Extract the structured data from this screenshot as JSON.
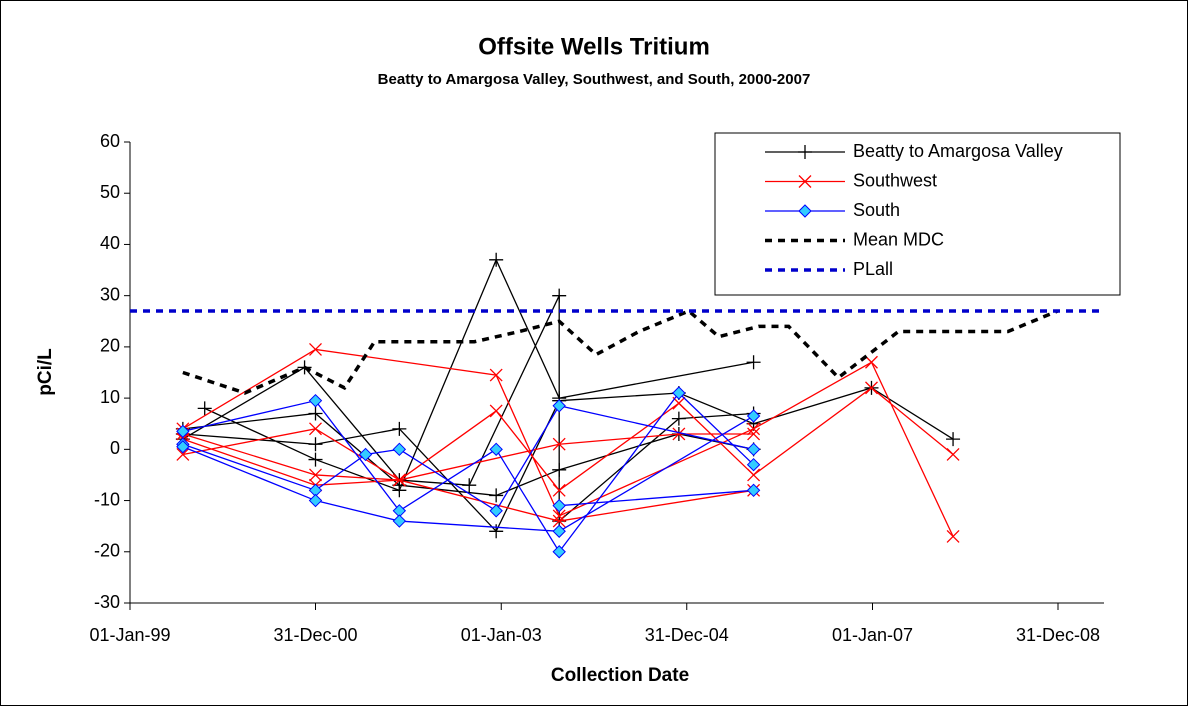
{
  "chart_data": {
    "type": "line",
    "title": "Offsite Wells Tritium",
    "subtitle": "Beatty to Amargosa Valley, Southwest, and South, 2000-2007",
    "x_label": "Collection Date",
    "y_label": "pCi/L",
    "xlim": [
      "1999-01-01",
      "2009-06-30"
    ],
    "xticks": [
      {
        "value": "1999-01-01",
        "label": "01-Jan-99"
      },
      {
        "value": "2000-12-31",
        "label": "31-Dec-00"
      },
      {
        "value": "2003-01-01",
        "label": "01-Jan-03"
      },
      {
        "value": "2004-12-31",
        "label": "31-Dec-04"
      },
      {
        "value": "2007-01-01",
        "label": "01-Jan-07"
      },
      {
        "value": "2008-12-31",
        "label": "31-Dec-08"
      }
    ],
    "ylim": [
      -30,
      60
    ],
    "yticks": [
      -30,
      -20,
      -10,
      0,
      10,
      20,
      30,
      40,
      50,
      60
    ],
    "legend": "top-right",
    "series": [
      {
        "name": "Beatty to Amargosa Valley",
        "color": "#000000",
        "marker": "plus",
        "dash": false,
        "x": [
          "1999-07-28",
          "2000-12-31",
          "2001-11-26",
          "2002-12-12",
          "2003-08-17",
          "2004-11-30",
          "2005-09-20",
          "2006-12-28",
          "2007-11-14",
          null,
          "1999-10-22",
          "2000-12-31",
          "2001-11-26",
          "2002-12-12",
          "2003-08-17",
          "2005-09-20",
          null,
          "1999-07-28",
          "2000-11-18",
          "2001-11-26",
          "2002-08-28",
          "2003-08-17",
          "2003-08-17",
          "2004-11-30",
          "2005-09-20",
          null,
          "1999-07-28",
          "2000-12-31",
          "2001-11-26",
          "2002-12-12",
          "2003-08-17",
          "2004-11-30",
          "2005-09-20"
        ],
        "values": [
          3,
          1,
          4,
          -16,
          9.5,
          11,
          5,
          12,
          2,
          null,
          8,
          -2,
          -8,
          37,
          10,
          17,
          null,
          2,
          16,
          -6,
          -7,
          30,
          -14,
          6,
          7,
          null,
          4,
          7,
          -7,
          -9,
          -4,
          3,
          0
        ]
      },
      {
        "name": "Southwest",
        "color": "#ff0000",
        "marker": "x",
        "dash": false,
        "x": [
          "1999-07-28",
          "2000-12-31",
          "2002-12-12",
          "2003-08-17",
          "2005-09-20",
          "2006-12-28",
          "2007-11-14",
          null,
          "1999-07-28",
          "2000-12-31",
          "2001-11-26",
          "2002-12-12",
          "2003-08-17",
          "2004-11-30",
          "2005-09-20",
          "2006-12-28",
          "2007-11-14",
          null,
          "1999-07-28",
          "2000-12-31",
          "2001-11-26",
          "2003-08-17",
          "2004-11-30",
          "2005-09-20",
          null,
          "1999-07-28",
          "2000-12-31",
          "2001-11-26",
          "2003-08-17",
          "2005-09-20"
        ],
        "values": [
          4,
          19.5,
          14.5,
          -13,
          4,
          17,
          -17,
          null,
          -1,
          4,
          -6,
          7.5,
          -8,
          9,
          -5,
          12,
          -1,
          null,
          3,
          -5,
          -6,
          1,
          3,
          3,
          null,
          2,
          -7,
          -6,
          -14,
          -8
        ]
      },
      {
        "name": "South",
        "color": "#0000ff",
        "marker": "diamond",
        "dash": false,
        "x": [
          "1999-07-28",
          "2000-12-31",
          "2001-11-26",
          "2002-12-12",
          "2003-08-17",
          "2004-11-30",
          "2005-09-20",
          null,
          "1999-07-28",
          "2000-12-31",
          "2001-07-16",
          "2001-11-26",
          "2002-12-12",
          "2003-08-17",
          "2005-09-20",
          null,
          "1999-07-28",
          "2000-12-31",
          "2001-11-26",
          "2003-08-17",
          "2005-09-20",
          null,
          "2003-08-17",
          "2005-09-20"
        ],
        "values": [
          3.5,
          9.5,
          -12,
          0,
          -20,
          11,
          -3,
          null,
          1,
          -8,
          -1,
          0,
          -12,
          8.5,
          0,
          null,
          0.5,
          -10,
          -14,
          -16,
          6.5,
          null,
          -11,
          -8
        ]
      },
      {
        "name": "Mean MDC",
        "color": "#000000",
        "marker": "none",
        "dash": true,
        "x": [
          "1999-07-28",
          "2000-03-28",
          "2000-11-18",
          "2001-04-24",
          "2001-08-20",
          "2002-03-24",
          "2002-09-17",
          "2003-03-13",
          "2003-08-17",
          "2004-01-09",
          "2004-06-26",
          "2005-01-08",
          "2005-05-06",
          "2005-10-10",
          "2006-02-05",
          "2006-08-20",
          "2007-04-13",
          "2008-06-17",
          "2008-12-29"
        ],
        "values": [
          15,
          11,
          16,
          12,
          21,
          21,
          21,
          23,
          25,
          18.5,
          23,
          27,
          22,
          24,
          24,
          14,
          23,
          23,
          27
        ]
      },
      {
        "name": "PLall",
        "color": "#0000cc",
        "marker": "none",
        "dash": true,
        "x": [
          "1999-01-01",
          "2009-06-30"
        ],
        "values": [
          27,
          27
        ]
      }
    ]
  }
}
